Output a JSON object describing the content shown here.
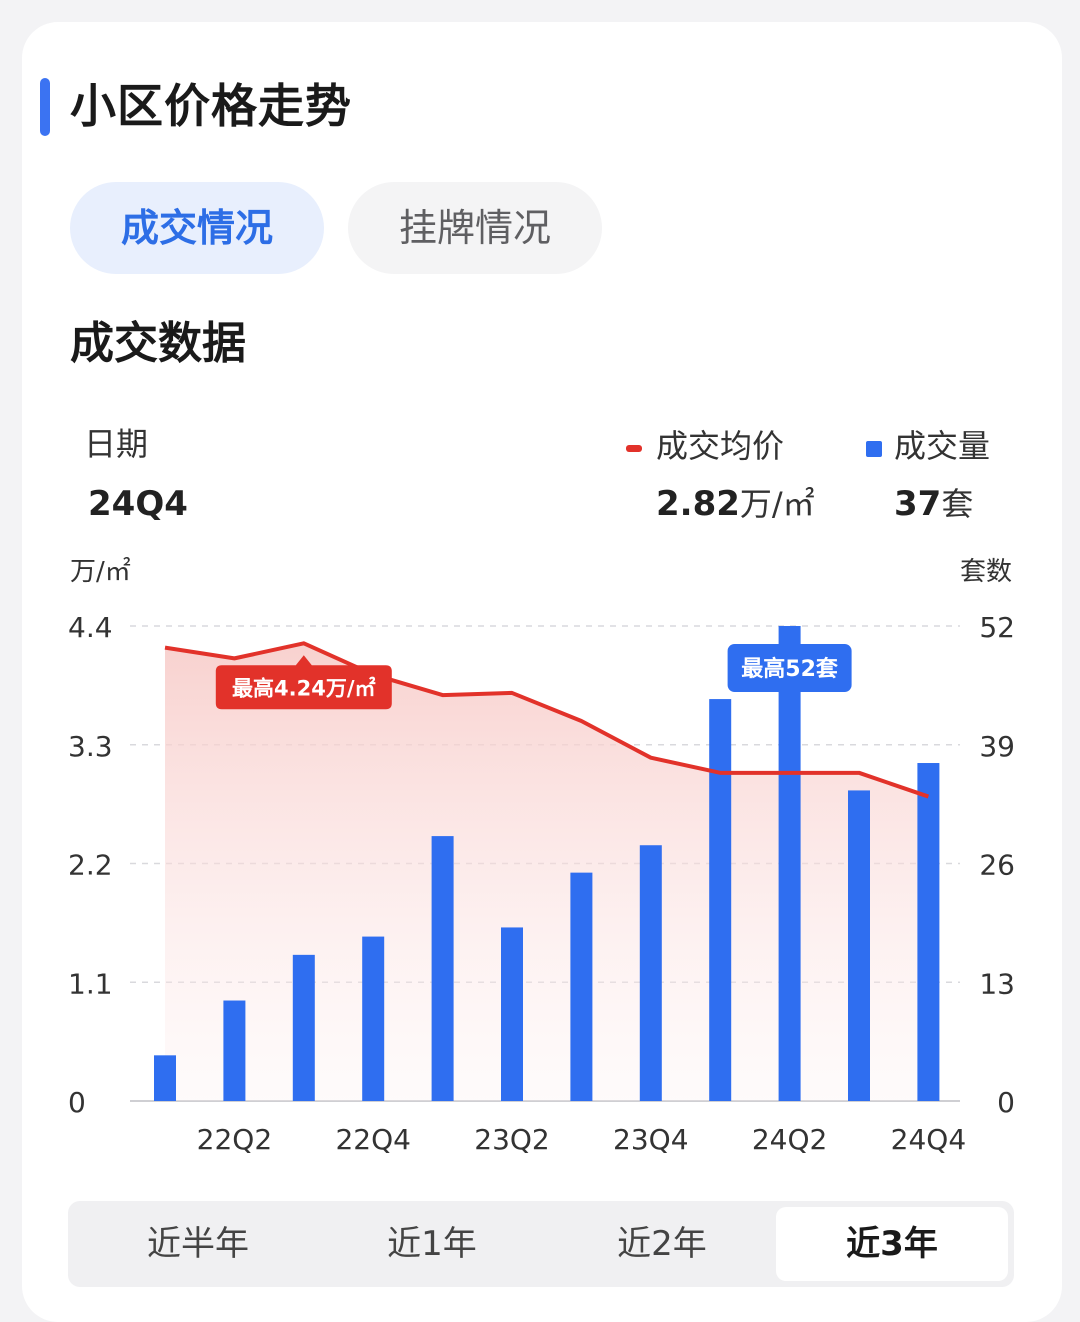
{
  "header": {
    "title": "小区价格走势"
  },
  "tabs": [
    {
      "label": "成交情况",
      "active": true
    },
    {
      "label": "挂牌情况",
      "active": false
    }
  ],
  "section": {
    "title": "成交数据"
  },
  "info": {
    "date_label": "日期",
    "date_value": "24Q4",
    "price_label": "成交均价",
    "price_value": "2.82",
    "price_unit": "万/㎡",
    "volume_label": "成交量",
    "volume_value": "37",
    "volume_unit": "套"
  },
  "colors": {
    "accent": "#3b73f2",
    "price_line": "#e2322a",
    "bar": "#2f6ef0"
  },
  "range": {
    "options": [
      "近半年",
      "近1年",
      "近2年",
      "近3年"
    ],
    "selected": "近3年"
  },
  "chart_data": {
    "type": "bar",
    "categories": [
      "22Q1",
      "22Q2",
      "22Q3",
      "22Q4",
      "23Q1",
      "23Q2",
      "23Q3",
      "23Q4",
      "24Q1",
      "24Q2",
      "24Q3",
      "24Q4"
    ],
    "x_tick_labels": [
      "22Q2",
      "22Q4",
      "23Q2",
      "23Q4",
      "24Q2",
      "24Q4"
    ],
    "series": [
      {
        "name": "成交量",
        "kind": "bar",
        "axis": "right",
        "values": [
          5,
          11,
          16,
          18,
          29,
          19,
          25,
          28,
          44,
          52,
          34,
          37
        ]
      },
      {
        "name": "成交均价",
        "kind": "line",
        "axis": "left",
        "values": [
          4.2,
          4.1,
          4.24,
          3.95,
          3.76,
          3.78,
          3.52,
          3.18,
          3.04,
          3.04,
          3.04,
          2.82
        ]
      }
    ],
    "y_left": {
      "label": "万/㎡",
      "ticks": [
        "0",
        "1.1",
        "2.2",
        "3.3",
        "4.4"
      ],
      "range": [
        0,
        4.4
      ]
    },
    "y_right": {
      "label": "套数",
      "ticks": [
        "0",
        "13",
        "26",
        "39",
        "52"
      ],
      "range": [
        0,
        52
      ]
    },
    "annotations": {
      "price_max": "最高4.24万/㎡",
      "volume_max": "最高52套"
    }
  }
}
